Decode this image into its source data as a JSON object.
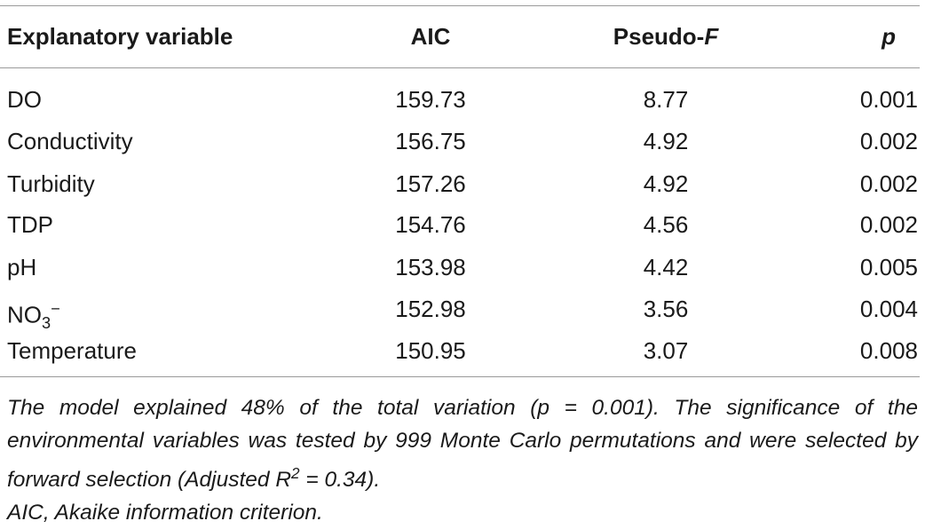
{
  "table": {
    "headers": {
      "variable": "Explanatory variable",
      "aic": "AIC",
      "pseudo_prefix": "Pseudo-",
      "pseudo_italic": "F",
      "p": "p"
    },
    "rows": [
      {
        "variable": "DO",
        "aic": "159.73",
        "pseudo_f": "8.77",
        "p": "0.001"
      },
      {
        "variable": "Conductivity",
        "aic": "156.75",
        "pseudo_f": "4.92",
        "p": "0.002"
      },
      {
        "variable": "Turbidity",
        "aic": "157.26",
        "pseudo_f": "4.92",
        "p": "0.002"
      },
      {
        "variable": "TDP",
        "aic": "154.76",
        "pseudo_f": "4.56",
        "p": "0.002"
      },
      {
        "variable": "pH",
        "aic": "153.98",
        "pseudo_f": "4.42",
        "p": "0.005"
      },
      {
        "variable_base": "NO",
        "variable_sub": "3",
        "variable_sup": "−",
        "aic": "152.98",
        "pseudo_f": "3.56",
        "p": "0.004"
      },
      {
        "variable": "Temperature",
        "aic": "150.95",
        "pseudo_f": "3.07",
        "p": "0.008"
      }
    ]
  },
  "footnote": {
    "line1_part1": "The model explained 48% of the total variation (p = 0.001). The significance of the environmental variables was tested by 999 Monte Carlo permutations and were selected by forward selection (Adjusted R",
    "line1_sup": "2",
    "line1_part2": " = 0.34).",
    "line2": "AIC, Akaike information criterion."
  }
}
